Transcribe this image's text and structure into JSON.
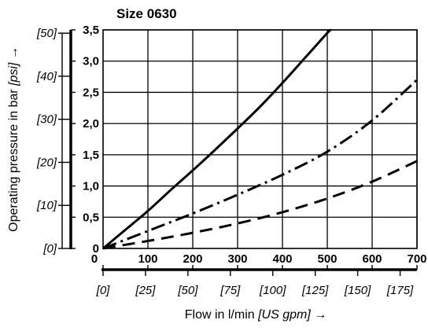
{
  "chart_data": {
    "type": "line",
    "title": "Size 0630",
    "xlabel_main": "Flow in l/min ",
    "xlabel_unit": "[US gpm]",
    "xlabel_arrow": " →",
    "ylabel_main": "Operating pressure in bar ",
    "ylabel_unit": "[psi]",
    "ylabel_arrow": " →",
    "xlim": [
      0,
      700
    ],
    "ylim": [
      0,
      3.5
    ],
    "grid": true,
    "x_ticks": [
      {
        "value": 0,
        "label": "0"
      },
      {
        "value": 100,
        "label": "100"
      },
      {
        "value": 200,
        "label": "200"
      },
      {
        "value": 300,
        "label": "300"
      },
      {
        "value": 400,
        "label": "400"
      },
      {
        "value": 500,
        "label": "500"
      },
      {
        "value": 600,
        "label": "600"
      },
      {
        "value": 700,
        "label": "700"
      }
    ],
    "y_ticks": [
      {
        "value": 0,
        "label": "0"
      },
      {
        "value": 0.5,
        "label": "0,5"
      },
      {
        "value": 1.0,
        "label": "1,0"
      },
      {
        "value": 1.5,
        "label": "1,5"
      },
      {
        "value": 2.0,
        "label": "2,0"
      },
      {
        "value": 2.5,
        "label": "2,5"
      },
      {
        "value": 3.0,
        "label": "3,0"
      },
      {
        "value": 3.5,
        "label": "3,5"
      }
    ],
    "x_secondary_ticks": [
      {
        "value": 0,
        "label": "[0]"
      },
      {
        "value": 25,
        "label": "[25]"
      },
      {
        "value": 50,
        "label": "[50]"
      },
      {
        "value": 75,
        "label": "[75]"
      },
      {
        "value": 100,
        "label": "[100]"
      },
      {
        "value": 125,
        "label": "[125]"
      },
      {
        "value": 150,
        "label": "[150]"
      },
      {
        "value": 175,
        "label": "[175]"
      }
    ],
    "x_secondary_factor_lpm_per_gpm": 3.785,
    "y_secondary_ticks": [
      {
        "value": 0,
        "label": "[0]"
      },
      {
        "value": 10,
        "label": "[10]"
      },
      {
        "value": 20,
        "label": "[20]"
      },
      {
        "value": 30,
        "label": "[30]"
      },
      {
        "value": 40,
        "label": "[40]"
      },
      {
        "value": 50,
        "label": "[50]"
      }
    ],
    "y_secondary_factor_psi_per_bar": 14.5038,
    "series": [
      {
        "style": "solid",
        "x": [
          0,
          50,
          100,
          150,
          200,
          250,
          300,
          350,
          400,
          450,
          500,
          508
        ],
        "y": [
          0,
          0.3,
          0.6,
          0.93,
          1.25,
          1.58,
          1.92,
          2.27,
          2.65,
          3.05,
          3.45,
          3.5
        ]
      },
      {
        "style": "dashdot",
        "x": [
          0,
          100,
          200,
          300,
          400,
          500,
          600,
          700
        ],
        "y": [
          0,
          0.28,
          0.56,
          0.86,
          1.18,
          1.55,
          2.05,
          2.7
        ]
      },
      {
        "style": "dashed",
        "x": [
          0,
          100,
          200,
          300,
          400,
          500,
          600,
          700
        ],
        "y": [
          0,
          0.12,
          0.25,
          0.4,
          0.58,
          0.8,
          1.07,
          1.4
        ]
      }
    ]
  }
}
